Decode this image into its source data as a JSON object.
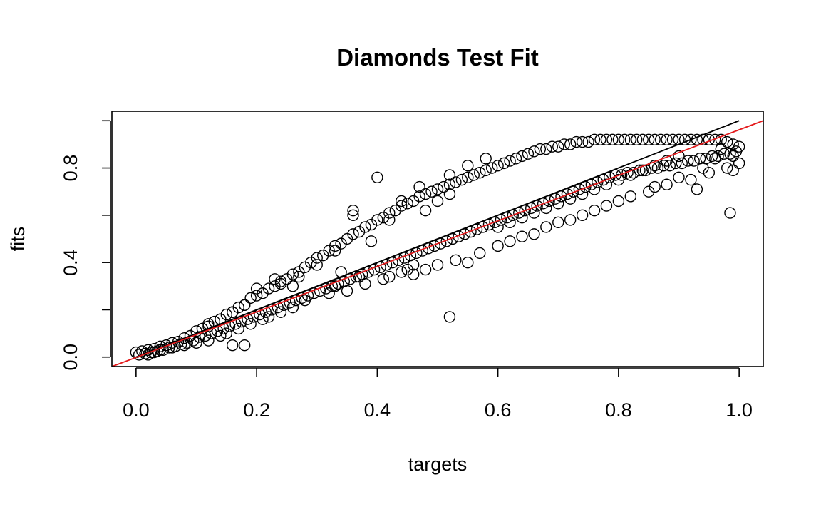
{
  "chart_data": {
    "type": "scatter",
    "title": "Diamonds Test Fit",
    "xlabel": "targets",
    "ylabel": "fits",
    "xlim": [
      -0.04,
      1.04
    ],
    "ylim": [
      -0.04,
      1.04
    ],
    "x_ticks": [
      0.0,
      0.2,
      0.4,
      0.6,
      0.8,
      1.0
    ],
    "x_tick_labels": [
      "0.0",
      "0.2",
      "0.4",
      "0.6",
      "0.8",
      "1.0"
    ],
    "y_ticks": [
      0.0,
      0.2,
      0.4,
      0.6,
      0.8,
      1.0
    ],
    "y_tick_labels": [
      "0.0",
      "",
      "0.4",
      "",
      "0.8",
      ""
    ],
    "grid": false,
    "marker": "open-circle",
    "lines": [
      {
        "kind": "identity",
        "x": [
          0.0,
          1.0
        ],
        "y": [
          0.0,
          1.0
        ],
        "color": "#000000"
      },
      {
        "kind": "fit",
        "x": [
          -0.04,
          1.04
        ],
        "y": [
          -0.04,
          1.0
        ],
        "color": "#e41a1c"
      }
    ],
    "series": [
      {
        "points": [
          [
            0.0,
            0.02
          ],
          [
            0.005,
            0.01
          ],
          [
            0.01,
            0.025
          ],
          [
            0.015,
            0.015
          ],
          [
            0.02,
            0.03
          ],
          [
            0.025,
            0.02
          ],
          [
            0.03,
            0.035
          ],
          [
            0.035,
            0.025
          ],
          [
            0.04,
            0.045
          ],
          [
            0.045,
            0.03
          ],
          [
            0.05,
            0.05
          ],
          [
            0.055,
            0.04
          ],
          [
            0.06,
            0.06
          ],
          [
            0.065,
            0.045
          ],
          [
            0.07,
            0.065
          ],
          [
            0.075,
            0.055
          ],
          [
            0.08,
            0.08
          ],
          [
            0.085,
            0.06
          ],
          [
            0.09,
            0.09
          ],
          [
            0.095,
            0.07
          ],
          [
            0.1,
            0.11
          ],
          [
            0.105,
            0.085
          ],
          [
            0.11,
            0.12
          ],
          [
            0.115,
            0.09
          ],
          [
            0.12,
            0.13
          ],
          [
            0.125,
            0.1
          ],
          [
            0.13,
            0.15
          ],
          [
            0.135,
            0.11
          ],
          [
            0.14,
            0.16
          ],
          [
            0.145,
            0.12
          ],
          [
            0.15,
            0.18
          ],
          [
            0.155,
            0.13
          ],
          [
            0.16,
            0.19
          ],
          [
            0.165,
            0.14
          ],
          [
            0.17,
            0.21
          ],
          [
            0.175,
            0.15
          ],
          [
            0.18,
            0.22
          ],
          [
            0.185,
            0.16
          ],
          [
            0.19,
            0.25
          ],
          [
            0.195,
            0.17
          ],
          [
            0.2,
            0.26
          ],
          [
            0.205,
            0.18
          ],
          [
            0.21,
            0.27
          ],
          [
            0.215,
            0.19
          ],
          [
            0.22,
            0.29
          ],
          [
            0.225,
            0.2
          ],
          [
            0.23,
            0.3
          ],
          [
            0.235,
            0.21
          ],
          [
            0.24,
            0.32
          ],
          [
            0.245,
            0.22
          ],
          [
            0.25,
            0.33
          ],
          [
            0.255,
            0.23
          ],
          [
            0.26,
            0.35
          ],
          [
            0.265,
            0.24
          ],
          [
            0.27,
            0.36
          ],
          [
            0.275,
            0.25
          ],
          [
            0.28,
            0.38
          ],
          [
            0.285,
            0.26
          ],
          [
            0.29,
            0.4
          ],
          [
            0.295,
            0.27
          ],
          [
            0.3,
            0.42
          ],
          [
            0.305,
            0.28
          ],
          [
            0.31,
            0.43
          ],
          [
            0.315,
            0.29
          ],
          [
            0.32,
            0.45
          ],
          [
            0.325,
            0.3
          ],
          [
            0.33,
            0.47
          ],
          [
            0.335,
            0.31
          ],
          [
            0.34,
            0.48
          ],
          [
            0.345,
            0.32
          ],
          [
            0.35,
            0.5
          ],
          [
            0.355,
            0.33
          ],
          [
            0.36,
            0.52
          ],
          [
            0.365,
            0.34
          ],
          [
            0.37,
            0.53
          ],
          [
            0.375,
            0.35
          ],
          [
            0.38,
            0.55
          ],
          [
            0.385,
            0.36
          ],
          [
            0.39,
            0.56
          ],
          [
            0.395,
            0.37
          ],
          [
            0.4,
            0.58
          ],
          [
            0.405,
            0.38
          ],
          [
            0.41,
            0.59
          ],
          [
            0.415,
            0.39
          ],
          [
            0.42,
            0.61
          ],
          [
            0.425,
            0.4
          ],
          [
            0.43,
            0.62
          ],
          [
            0.435,
            0.41
          ],
          [
            0.44,
            0.64
          ],
          [
            0.445,
            0.42
          ],
          [
            0.45,
            0.65
          ],
          [
            0.455,
            0.43
          ],
          [
            0.46,
            0.66
          ],
          [
            0.465,
            0.44
          ],
          [
            0.47,
            0.68
          ],
          [
            0.475,
            0.45
          ],
          [
            0.48,
            0.69
          ],
          [
            0.485,
            0.46
          ],
          [
            0.49,
            0.7
          ],
          [
            0.495,
            0.47
          ],
          [
            0.5,
            0.71
          ],
          [
            0.505,
            0.48
          ],
          [
            0.51,
            0.72
          ],
          [
            0.515,
            0.49
          ],
          [
            0.52,
            0.73
          ],
          [
            0.525,
            0.5
          ],
          [
            0.53,
            0.74
          ],
          [
            0.535,
            0.51
          ],
          [
            0.54,
            0.75
          ],
          [
            0.545,
            0.52
          ],
          [
            0.55,
            0.76
          ],
          [
            0.555,
            0.53
          ],
          [
            0.56,
            0.77
          ],
          [
            0.565,
            0.54
          ],
          [
            0.57,
            0.78
          ],
          [
            0.575,
            0.55
          ],
          [
            0.58,
            0.79
          ],
          [
            0.585,
            0.56
          ],
          [
            0.59,
            0.8
          ],
          [
            0.595,
            0.57
          ],
          [
            0.6,
            0.81
          ],
          [
            0.605,
            0.58
          ],
          [
            0.61,
            0.82
          ],
          [
            0.615,
            0.59
          ],
          [
            0.62,
            0.83
          ],
          [
            0.625,
            0.6
          ],
          [
            0.63,
            0.84
          ],
          [
            0.635,
            0.61
          ],
          [
            0.64,
            0.85
          ],
          [
            0.645,
            0.62
          ],
          [
            0.65,
            0.86
          ],
          [
            0.655,
            0.63
          ],
          [
            0.66,
            0.87
          ],
          [
            0.665,
            0.64
          ],
          [
            0.67,
            0.88
          ],
          [
            0.675,
            0.65
          ],
          [
            0.68,
            0.88
          ],
          [
            0.685,
            0.66
          ],
          [
            0.69,
            0.89
          ],
          [
            0.695,
            0.67
          ],
          [
            0.7,
            0.89
          ],
          [
            0.705,
            0.68
          ],
          [
            0.71,
            0.9
          ],
          [
            0.715,
            0.69
          ],
          [
            0.72,
            0.9
          ],
          [
            0.725,
            0.7
          ],
          [
            0.73,
            0.91
          ],
          [
            0.735,
            0.71
          ],
          [
            0.74,
            0.91
          ],
          [
            0.745,
            0.72
          ],
          [
            0.75,
            0.91
          ],
          [
            0.755,
            0.73
          ],
          [
            0.76,
            0.92
          ],
          [
            0.765,
            0.74
          ],
          [
            0.77,
            0.92
          ],
          [
            0.775,
            0.75
          ],
          [
            0.78,
            0.92
          ],
          [
            0.785,
            0.76
          ],
          [
            0.79,
            0.92
          ],
          [
            0.795,
            0.77
          ],
          [
            0.8,
            0.92
          ],
          [
            0.805,
            0.77
          ],
          [
            0.81,
            0.92
          ],
          [
            0.815,
            0.78
          ],
          [
            0.82,
            0.92
          ],
          [
            0.825,
            0.78
          ],
          [
            0.83,
            0.92
          ],
          [
            0.835,
            0.79
          ],
          [
            0.84,
            0.92
          ],
          [
            0.845,
            0.79
          ],
          [
            0.85,
            0.92
          ],
          [
            0.855,
            0.8
          ],
          [
            0.86,
            0.92
          ],
          [
            0.865,
            0.8
          ],
          [
            0.87,
            0.92
          ],
          [
            0.875,
            0.81
          ],
          [
            0.88,
            0.92
          ],
          [
            0.885,
            0.81
          ],
          [
            0.89,
            0.92
          ],
          [
            0.895,
            0.82
          ],
          [
            0.9,
            0.92
          ],
          [
            0.905,
            0.82
          ],
          [
            0.91,
            0.92
          ],
          [
            0.915,
            0.83
          ],
          [
            0.92,
            0.92
          ],
          [
            0.925,
            0.83
          ],
          [
            0.93,
            0.92
          ],
          [
            0.935,
            0.84
          ],
          [
            0.94,
            0.92
          ],
          [
            0.945,
            0.84
          ],
          [
            0.95,
            0.92
          ],
          [
            0.955,
            0.85
          ],
          [
            0.96,
            0.92
          ],
          [
            0.965,
            0.85
          ],
          [
            0.97,
            0.92
          ],
          [
            0.975,
            0.86
          ],
          [
            0.98,
            0.91
          ],
          [
            0.985,
            0.86
          ],
          [
            0.99,
            0.9
          ],
          [
            0.995,
            0.87
          ],
          [
            1.0,
            0.89
          ],
          [
            0.36,
            0.6
          ],
          [
            0.36,
            0.62
          ],
          [
            0.4,
            0.76
          ],
          [
            0.42,
            0.58
          ],
          [
            0.44,
            0.66
          ],
          [
            0.47,
            0.72
          ],
          [
            0.52,
            0.77
          ],
          [
            0.55,
            0.81
          ],
          [
            0.58,
            0.84
          ],
          [
            0.5,
            0.66
          ],
          [
            0.52,
            0.69
          ],
          [
            0.48,
            0.62
          ],
          [
            0.3,
            0.39
          ],
          [
            0.26,
            0.3
          ],
          [
            0.23,
            0.33
          ],
          [
            0.2,
            0.29
          ],
          [
            0.18,
            0.22
          ],
          [
            0.16,
            0.19
          ],
          [
            0.14,
            0.16
          ],
          [
            0.12,
            0.14
          ],
          [
            0.24,
            0.31
          ],
          [
            0.27,
            0.34
          ],
          [
            0.33,
            0.45
          ],
          [
            0.39,
            0.49
          ],
          [
            0.34,
            0.36
          ],
          [
            0.33,
            0.3
          ],
          [
            0.37,
            0.34
          ],
          [
            0.41,
            0.33
          ],
          [
            0.45,
            0.37
          ],
          [
            0.5,
            0.39
          ],
          [
            0.53,
            0.41
          ],
          [
            0.55,
            0.4
          ],
          [
            0.6,
            0.47
          ],
          [
            0.64,
            0.51
          ],
          [
            0.68,
            0.55
          ],
          [
            0.72,
            0.58
          ],
          [
            0.76,
            0.62
          ],
          [
            0.8,
            0.66
          ],
          [
            0.85,
            0.7
          ],
          [
            0.88,
            0.73
          ],
          [
            0.92,
            0.75
          ],
          [
            0.95,
            0.78
          ],
          [
            0.98,
            0.8
          ],
          [
            1.0,
            0.82
          ],
          [
            0.93,
            0.71
          ],
          [
            0.99,
            0.79
          ],
          [
            0.985,
            0.61
          ],
          [
            0.52,
            0.17
          ],
          [
            0.48,
            0.37
          ],
          [
            0.46,
            0.35
          ],
          [
            0.57,
            0.44
          ],
          [
            0.62,
            0.49
          ],
          [
            0.66,
            0.52
          ],
          [
            0.7,
            0.57
          ],
          [
            0.74,
            0.6
          ],
          [
            0.78,
            0.64
          ],
          [
            0.82,
            0.68
          ],
          [
            0.86,
            0.72
          ],
          [
            0.9,
            0.76
          ],
          [
            0.94,
            0.8
          ],
          [
            0.96,
            0.84
          ],
          [
            0.97,
            0.88
          ],
          [
            0.99,
            0.85
          ],
          [
            0.26,
            0.21
          ],
          [
            0.28,
            0.24
          ],
          [
            0.32,
            0.27
          ],
          [
            0.35,
            0.28
          ],
          [
            0.38,
            0.31
          ],
          [
            0.42,
            0.34
          ],
          [
            0.44,
            0.36
          ],
          [
            0.46,
            0.39
          ],
          [
            0.16,
            0.05
          ],
          [
            0.18,
            0.05
          ],
          [
            0.1,
            0.06
          ],
          [
            0.08,
            0.05
          ],
          [
            0.06,
            0.04
          ],
          [
            0.04,
            0.03
          ],
          [
            0.03,
            0.02
          ],
          [
            0.02,
            0.01
          ],
          [
            0.12,
            0.07
          ],
          [
            0.14,
            0.09
          ],
          [
            0.15,
            0.1
          ],
          [
            0.17,
            0.12
          ],
          [
            0.19,
            0.14
          ],
          [
            0.21,
            0.16
          ],
          [
            0.22,
            0.17
          ],
          [
            0.24,
            0.19
          ],
          [
            0.6,
            0.55
          ],
          [
            0.62,
            0.57
          ],
          [
            0.64,
            0.59
          ],
          [
            0.66,
            0.61
          ],
          [
            0.68,
            0.63
          ],
          [
            0.7,
            0.65
          ],
          [
            0.72,
            0.67
          ],
          [
            0.74,
            0.69
          ],
          [
            0.76,
            0.71
          ],
          [
            0.78,
            0.73
          ],
          [
            0.8,
            0.75
          ],
          [
            0.82,
            0.77
          ],
          [
            0.84,
            0.79
          ],
          [
            0.86,
            0.81
          ],
          [
            0.88,
            0.83
          ],
          [
            0.9,
            0.85
          ]
        ]
      }
    ]
  }
}
